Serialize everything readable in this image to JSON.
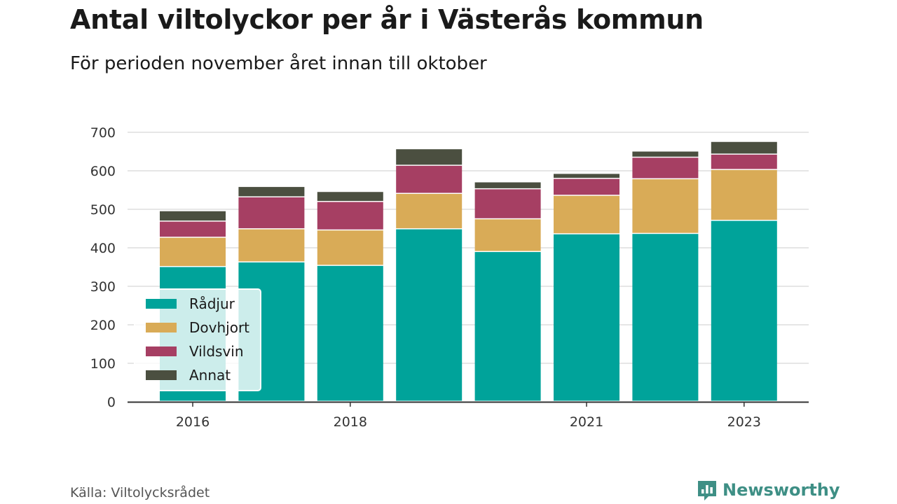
{
  "header": {
    "title": "Antal viltolyckor per år i Västerås kommun",
    "subtitle": "För perioden november året innan till oktober"
  },
  "footer": {
    "source": "Källa: Viltolycksrådet",
    "brand": "Newsworthy",
    "brand_icon": "bar-chart-logo-icon",
    "brand_color": "#3e8f85"
  },
  "chart_data": {
    "type": "bar",
    "stacked": true,
    "categories": [
      "2016",
      "2017",
      "2018",
      "2019",
      "2020",
      "2021",
      "2022",
      "2023"
    ],
    "x_tick_labels": [
      "2016",
      "",
      "2018",
      "",
      "",
      "2021",
      "",
      "2023"
    ],
    "series": [
      {
        "name": "Rådjur",
        "color": "#00a39a",
        "values": [
          350,
          362,
          353,
          448,
          389,
          435,
          436,
          470
        ]
      },
      {
        "name": "Dovhjort",
        "color": "#d9ab57",
        "values": [
          76,
          86,
          92,
          92,
          85,
          100,
          142,
          132
        ]
      },
      {
        "name": "Vildsvin",
        "color": "#a63f63",
        "values": [
          42,
          83,
          74,
          73,
          78,
          44,
          56,
          40
        ]
      },
      {
        "name": "Annat",
        "color": "#4b4f40",
        "values": [
          27,
          27,
          26,
          43,
          18,
          13,
          16,
          33
        ]
      }
    ],
    "ylim": [
      0,
      700
    ],
    "y_ticks": [
      0,
      100,
      200,
      300,
      400,
      500,
      600,
      700
    ],
    "grid": true,
    "legend_position": "bottom-left",
    "xlabel": "",
    "ylabel": ""
  }
}
